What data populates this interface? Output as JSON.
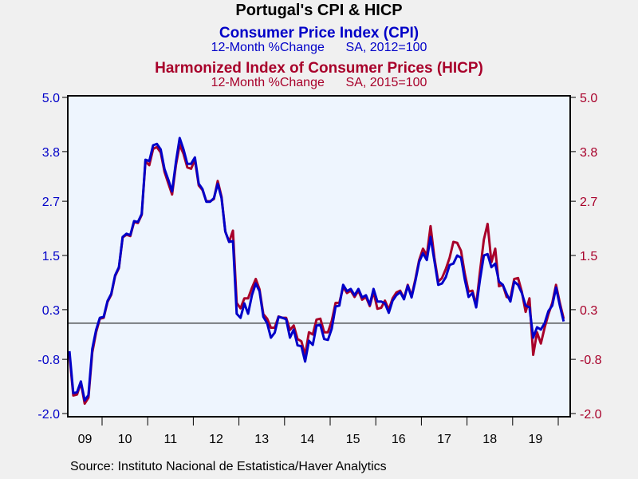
{
  "chart_data": {
    "type": "line",
    "title": "Portugal's CPI & HICP",
    "subtitles": [
      {
        "title": "Consumer Price Index (CPI)",
        "detail": "12-Month %Change      SA, 2012=100"
      },
      {
        "title": "Harmonized Index of Consumer Prices (HICP)",
        "detail": "12-Month %Change      SA, 2015=100"
      }
    ],
    "source": "Source:  Instituto Nacional de Estatistica/Haver Analytics",
    "frequency": "monthly",
    "start": "2009-04",
    "end": "2020-02",
    "x_tick_labels": [
      "09",
      "10",
      "11",
      "12",
      "13",
      "14",
      "15",
      "16",
      "17",
      "18",
      "19"
    ],
    "y_ticks_left": [
      "5.0",
      "3.8",
      "2.7",
      "1.5",
      "0.3",
      "-0.8",
      "-2.0"
    ],
    "y_ticks_right": [
      "5.0",
      "3.8",
      "2.7",
      "1.5",
      "0.3",
      "-0.8",
      "-2.0"
    ],
    "ylim": [
      -2.0,
      5.0
    ],
    "reference_line": 0,
    "colors": {
      "cpi": "#0000c8",
      "hicp": "#a8002a",
      "plot_bg": "#eef5fe"
    },
    "series": [
      {
        "name": "CPI",
        "axis": "left",
        "values": [
          -0.62,
          -1.55,
          -1.53,
          -1.29,
          -1.71,
          -1.59,
          -0.57,
          -0.15,
          0.12,
          0.14,
          0.49,
          0.65,
          1.06,
          1.24,
          1.91,
          1.98,
          1.95,
          2.26,
          2.24,
          2.42,
          3.62,
          3.59,
          3.94,
          3.97,
          3.85,
          3.41,
          3.18,
          2.92,
          3.57,
          4.1,
          3.85,
          3.53,
          3.53,
          3.67,
          3.09,
          2.97,
          2.69,
          2.69,
          2.77,
          3.09,
          2.77,
          2.03,
          1.8,
          1.82,
          0.21,
          0.12,
          0.44,
          0.21,
          0.62,
          0.88,
          0.71,
          0.14,
          0.0,
          -0.32,
          -0.21,
          0.14,
          0.12,
          0.09,
          -0.32,
          -0.14,
          -0.49,
          -0.51,
          -0.85,
          -0.39,
          -0.48,
          -0.05,
          -0.04,
          -0.35,
          -0.37,
          -0.12,
          0.37,
          0.39,
          0.85,
          0.71,
          0.76,
          0.62,
          0.76,
          0.57,
          0.62,
          0.41,
          0.76,
          0.48,
          0.48,
          0.44,
          0.23,
          0.5,
          0.62,
          0.69,
          0.53,
          0.83,
          0.57,
          0.94,
          1.36,
          1.55,
          1.4,
          1.91,
          1.38,
          0.85,
          0.88,
          1.02,
          1.29,
          1.32,
          1.5,
          1.45,
          0.97,
          0.58,
          0.67,
          0.35,
          0.97,
          1.5,
          1.53,
          1.24,
          1.32,
          0.92,
          0.85,
          0.65,
          0.48,
          0.92,
          0.85,
          0.67,
          0.39,
          0.35,
          -0.32,
          -0.09,
          -0.14,
          0.0,
          0.27,
          0.39,
          0.79,
          0.39,
          0.04
        ]
      },
      {
        "name": "HICP",
        "axis": "right",
        "values": [
          -0.7,
          -1.6,
          -1.58,
          -1.32,
          -1.78,
          -1.65,
          -0.65,
          -0.2,
          0.1,
          0.12,
          0.47,
          0.63,
          1.04,
          1.22,
          1.9,
          1.96,
          1.93,
          2.24,
          2.22,
          2.4,
          3.58,
          3.5,
          3.86,
          3.9,
          3.78,
          3.35,
          3.1,
          2.85,
          3.5,
          3.95,
          3.75,
          3.45,
          3.42,
          3.62,
          3.05,
          2.95,
          2.7,
          2.7,
          2.75,
          3.15,
          2.8,
          2.03,
          1.8,
          2.05,
          0.45,
          0.33,
          0.55,
          0.55,
          0.78,
          0.98,
          0.75,
          0.2,
          0.1,
          -0.1,
          -0.1,
          0.15,
          0.12,
          0.12,
          -0.15,
          -0.05,
          -0.35,
          -0.4,
          -0.7,
          -0.2,
          -0.25,
          0.08,
          0.1,
          -0.2,
          -0.2,
          0.05,
          0.45,
          0.45,
          0.8,
          0.67,
          0.72,
          0.58,
          0.72,
          0.52,
          0.58,
          0.38,
          0.7,
          0.32,
          0.34,
          0.5,
          0.3,
          0.55,
          0.68,
          0.72,
          0.55,
          0.85,
          0.6,
          0.98,
          1.4,
          1.65,
          1.5,
          2.15,
          1.45,
          0.92,
          1.0,
          1.2,
          1.45,
          1.8,
          1.78,
          1.6,
          1.1,
          0.7,
          0.72,
          0.4,
          1.15,
          1.85,
          2.2,
          1.35,
          1.65,
          0.82,
          0.85,
          0.58,
          0.55,
          0.98,
          1.0,
          0.7,
          0.25,
          0.55,
          -0.7,
          -0.2,
          -0.45,
          -0.1,
          0.2,
          0.45,
          0.85,
          0.45,
          0.1
        ]
      }
    ]
  }
}
